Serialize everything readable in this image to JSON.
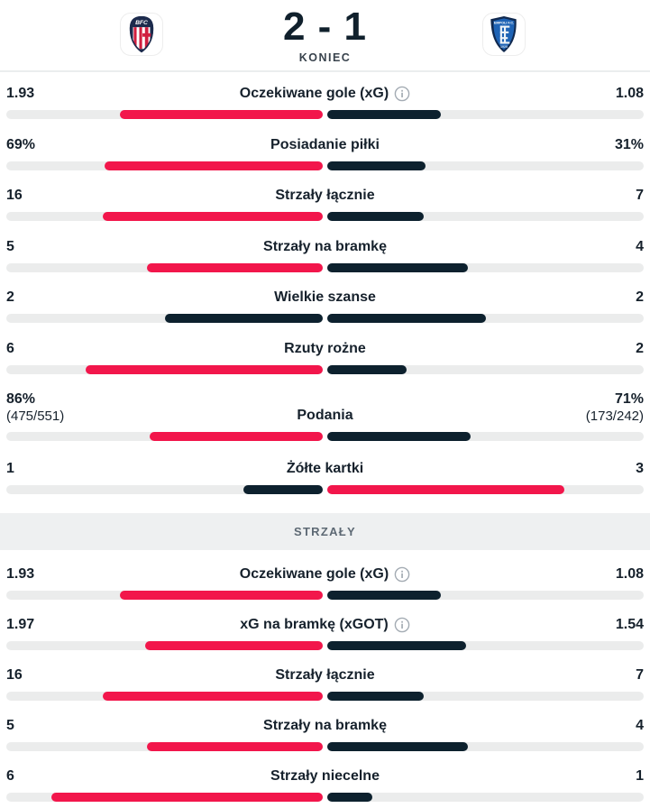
{
  "header": {
    "score": "2 - 1",
    "status": "KONIEC",
    "home_team": {
      "name": "Bologna",
      "logo": "bologna-crest"
    },
    "away_team": {
      "name": "Empoli",
      "logo": "empoli-crest"
    }
  },
  "colors": {
    "leader_bar": "#f2164b",
    "muted_bar": "#0d212e",
    "track": "#ebecec",
    "band_bg": "#eef0f1",
    "text": "#16212c",
    "secondary_text": "#5d6974"
  },
  "sections": [
    {
      "title": "",
      "rows": [
        {
          "label": "Oczekiwane gole (xG)",
          "info": true,
          "home": {
            "display": "1.93",
            "value": 1.93
          },
          "away": {
            "display": "1.08",
            "value": 1.08
          }
        },
        {
          "label": "Posiadanie piłki",
          "info": false,
          "home": {
            "display": "69%",
            "value": 69
          },
          "away": {
            "display": "31%",
            "value": 31
          }
        },
        {
          "label": "Strzały łącznie",
          "info": false,
          "home": {
            "display": "16",
            "value": 16
          },
          "away": {
            "display": "7",
            "value": 7
          }
        },
        {
          "label": "Strzały na bramkę",
          "info": false,
          "home": {
            "display": "5",
            "value": 5
          },
          "away": {
            "display": "4",
            "value": 4
          }
        },
        {
          "label": "Wielkie szanse",
          "info": false,
          "home": {
            "display": "2",
            "value": 2
          },
          "away": {
            "display": "2",
            "value": 2
          }
        },
        {
          "label": "Rzuty rożne",
          "info": false,
          "home": {
            "display": "6",
            "value": 6
          },
          "away": {
            "display": "2",
            "value": 2
          }
        },
        {
          "label": "Podania",
          "info": false,
          "home": {
            "display": "86%",
            "sub": "(475/551)",
            "value": 86
          },
          "away": {
            "display": "71%",
            "sub": "(173/242)",
            "value": 71
          }
        },
        {
          "label": "Żółte kartki",
          "info": false,
          "home": {
            "display": "1",
            "value": 1
          },
          "away": {
            "display": "3",
            "value": 3
          }
        }
      ]
    },
    {
      "title": "STRZAŁY",
      "rows": [
        {
          "label": "Oczekiwane gole (xG)",
          "info": true,
          "home": {
            "display": "1.93",
            "value": 1.93
          },
          "away": {
            "display": "1.08",
            "value": 1.08
          }
        },
        {
          "label": "xG na bramkę (xGOT)",
          "info": true,
          "home": {
            "display": "1.97",
            "value": 1.97
          },
          "away": {
            "display": "1.54",
            "value": 1.54
          }
        },
        {
          "label": "Strzały łącznie",
          "info": false,
          "home": {
            "display": "16",
            "value": 16
          },
          "away": {
            "display": "7",
            "value": 7
          }
        },
        {
          "label": "Strzały na bramkę",
          "info": false,
          "home": {
            "display": "5",
            "value": 5
          },
          "away": {
            "display": "4",
            "value": 4
          }
        },
        {
          "label": "Strzały niecelne",
          "info": false,
          "home": {
            "display": "6",
            "value": 6
          },
          "away": {
            "display": "1",
            "value": 1
          }
        }
      ]
    }
  ]
}
